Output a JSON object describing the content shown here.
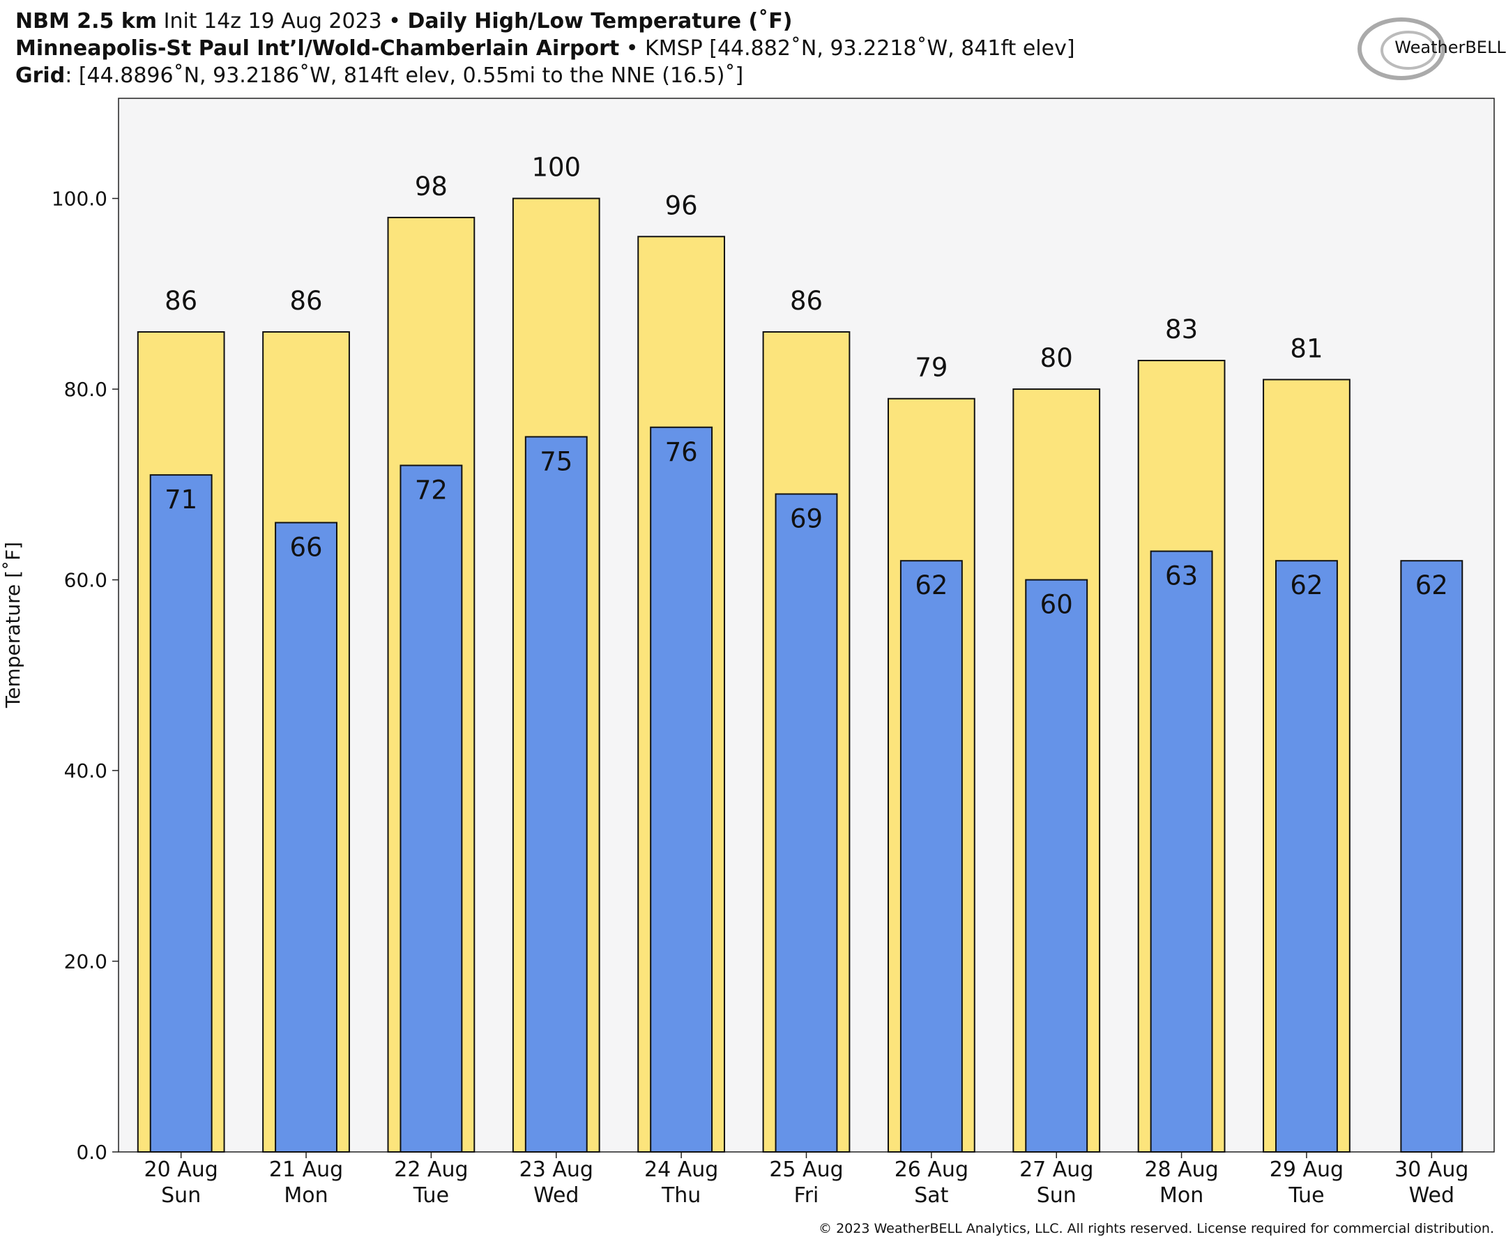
{
  "chart_data": {
    "type": "bar",
    "title_lines": [
      [
        "NBM 2.5 km",
        " Init 14z 19 Aug 2023 • ",
        "Daily High/Low Temperature (˚F)"
      ],
      [
        "Minneapolis-St Paul Int’l/Wold-Chamberlain Airport",
        " • KMSP [44.882˚N, 93.2218˚W, 841ft elev]"
      ],
      [
        "Grid",
        ": [44.8896˚N, 93.2186˚W, 814ft elev, 0.55mi to the NNE (16.5)˚]"
      ]
    ],
    "logo": "WeatherBELL",
    "y_label": "Temperature [˚F]",
    "footer": "© 2023 WeatherBELL Analytics, LLC. All rights reserved. License required for commercial distribution.",
    "categories": [
      "20 Aug",
      "21 Aug",
      "22 Aug",
      "23 Aug",
      "24 Aug",
      "25 Aug",
      "26 Aug",
      "27 Aug",
      "28 Aug",
      "29 Aug",
      "30 Aug"
    ],
    "category_sublabels": [
      "Sun",
      "Mon",
      "Tue",
      "Wed",
      "Thu",
      "Fri",
      "Sat",
      "Sun",
      "Mon",
      "Tue",
      "Wed"
    ],
    "series": [
      {
        "color": "#fce47c",
        "values": [
          86,
          86,
          98,
          100,
          96,
          86,
          79,
          80,
          83,
          81,
          null
        ]
      },
      {
        "color": "#6593e8",
        "values": [
          71,
          66,
          72,
          75,
          76,
          69,
          62,
          60,
          63,
          62,
          62
        ]
      }
    ],
    "ylim": [
      0,
      110.5
    ],
    "yticks": [
      {
        "value": 0,
        "label": "0.0"
      },
      {
        "value": 20,
        "label": "20.0"
      },
      {
        "value": 40,
        "label": "40.0"
      },
      {
        "value": 60,
        "label": "60.0"
      },
      {
        "value": 80,
        "label": "80.0"
      },
      {
        "value": 100,
        "label": "100.0"
      }
    ],
    "grid": false
  }
}
